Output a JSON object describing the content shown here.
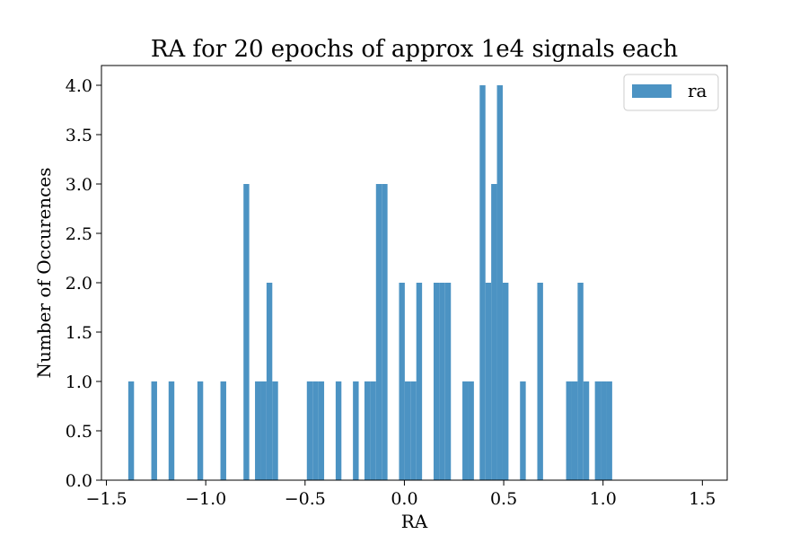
{
  "chart_data": {
    "type": "bar",
    "title": "RA for 20 epochs of approx 1e4 signals each",
    "xlabel": "RA",
    "ylabel": "Number of Occurences",
    "xlim": [
      -1.525,
      1.625
    ],
    "ylim": [
      0,
      4.2
    ],
    "xticks": [
      -1.5,
      -1.0,
      -0.5,
      0.0,
      0.5,
      1.0,
      1.5
    ],
    "xtick_labels": [
      "−1.5",
      "−1.0",
      "−0.5",
      "0.0",
      "0.5",
      "1.0",
      "1.5"
    ],
    "yticks": [
      0.0,
      0.5,
      1.0,
      1.5,
      2.0,
      2.5,
      3.0,
      3.5,
      4.0
    ],
    "ytick_labels": [
      "0.0",
      "0.5",
      "1.0",
      "1.5",
      "2.0",
      "2.5",
      "3.0",
      "3.5",
      "4.0"
    ],
    "grid": false,
    "legend": {
      "position": "top-right",
      "entries": [
        "ra"
      ]
    },
    "color": "#4c93c3",
    "bin_range": [
      -1.39,
      1.51
    ],
    "bin_count": 100,
    "series": [
      {
        "name": "ra",
        "values": [
          1,
          0,
          0,
          0,
          1,
          0,
          0,
          1,
          0,
          0,
          0,
          0,
          1,
          0,
          0,
          0,
          1,
          0,
          0,
          0,
          3,
          0,
          1,
          1,
          2,
          1,
          0,
          0,
          0,
          0,
          0,
          1,
          1,
          1,
          0,
          0,
          1,
          0,
          0,
          1,
          0,
          1,
          1,
          3,
          3,
          0,
          0,
          2,
          1,
          1,
          2,
          0,
          0,
          2,
          2,
          2,
          0,
          0,
          1,
          1,
          0,
          4,
          2,
          3,
          4,
          2,
          0,
          0,
          1,
          0,
          0,
          2,
          0,
          0,
          0,
          0,
          1,
          1,
          2,
          1,
          0,
          1,
          1,
          1,
          0,
          0,
          0,
          0,
          0,
          0,
          0,
          0,
          0,
          0,
          0,
          0,
          0,
          0,
          0,
          0
        ]
      }
    ]
  }
}
